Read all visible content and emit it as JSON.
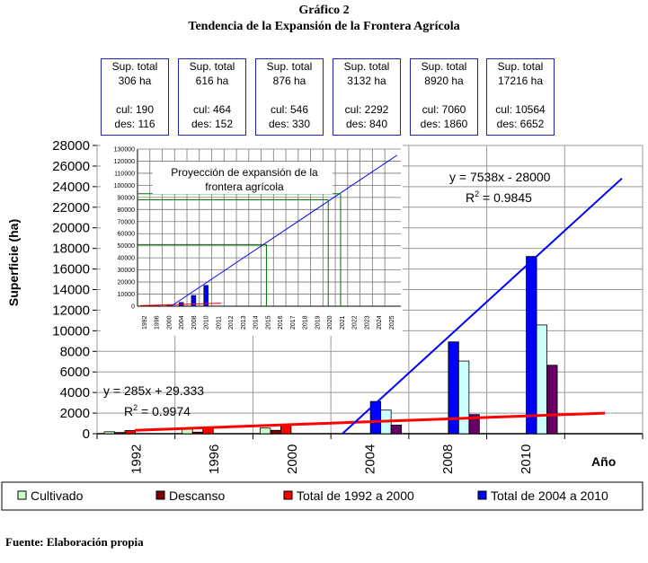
{
  "title": "Gráfico 2",
  "subtitle": "Tendencia de la Expansión de la Frontera Agrícola",
  "source": "Fuente: Elaboración propia",
  "boxes": [
    {
      "sup": "Sup. total",
      "total": "306 ha",
      "cul": "cul: 190",
      "des": "des: 116"
    },
    {
      "sup": "Sup. total",
      "total": "616 ha",
      "cul": "cul: 464",
      "des": "des: 152"
    },
    {
      "sup": "Sup. total",
      "total": "876 ha",
      "cul": "cul: 546",
      "des": "des: 330"
    },
    {
      "sup": "Sup. total",
      "total": "3132 ha",
      "cul": "cul: 2292",
      "des": "des: 840"
    },
    {
      "sup": "Sup. total",
      "total": "8920 ha",
      "cul": "cul: 7060",
      "des": "des: 1860"
    },
    {
      "sup": "Sup. total",
      "total": "17216 ha",
      "cul": "cul: 10564",
      "des": "des: 6652"
    }
  ],
  "chart_data": [
    {
      "type": "bar",
      "title": "",
      "ylabel": "Superficie (ha)",
      "xlabel": "Año",
      "ylim": [
        0,
        28000
      ],
      "yticks": [
        "0",
        "2000",
        "4000",
        "6000",
        "8000",
        "10000",
        "12000",
        "14000",
        "16000",
        "18000",
        "20000",
        "22000",
        "24000",
        "26000",
        "28000"
      ],
      "categories": [
        "1992",
        "1996",
        "2000",
        "2004",
        "2008",
        "2010"
      ],
      "series": [
        {
          "name": "Cultivado",
          "values": [
            190,
            464,
            546,
            2292,
            7060,
            10564
          ],
          "colors": [
            "#ccffcc",
            "#ccffff"
          ]
        },
        {
          "name": "Descanso",
          "values": [
            116,
            152,
            330,
            840,
            1860,
            6652
          ],
          "colors": [
            "#800000",
            "#660066"
          ]
        },
        {
          "name": "Total de 1992 a 2000",
          "values": [
            306,
            616,
            876,
            null,
            null,
            null
          ],
          "color": "#ff0000"
        },
        {
          "name": "Total de 2004 a 2010",
          "values": [
            null,
            null,
            null,
            3132,
            8920,
            17216
          ],
          "color": "#0000ff"
        }
      ],
      "trendlines": [
        {
          "equation": "y = 285x + 29.333",
          "r2_label": "R",
          "r2_value": "2",
          "r2_rest": " = 0.9974",
          "color": "#ff0000"
        },
        {
          "equation": "y = 7538x - 28000",
          "r2_label": "R",
          "r2_value": "2",
          "r2_rest": " = 0.9845",
          "color": "#0000ff"
        }
      ],
      "legend_position": "bottom"
    },
    {
      "type": "bar",
      "title": "Proyección de expansión de la frontera agrícola",
      "title_line1": "Proyección de expansión de la",
      "title_line2": "frontera agrícola",
      "ylim": [
        0,
        130000
      ],
      "yticks": [
        "0",
        "10000",
        "20000",
        "30000",
        "40000",
        "50000",
        "60000",
        "70000",
        "80000",
        "90000",
        "100000",
        "110000",
        "120000",
        "130000"
      ],
      "categories": [
        "1992",
        "1996",
        "2000",
        "2004",
        "2008",
        "2010",
        "2011",
        "2012",
        "2013",
        "2014",
        "2015",
        "2016",
        "2017",
        "2018",
        "2019",
        "2020",
        "2021",
        "2022",
        "2023",
        "2024",
        "2025"
      ],
      "totals": [
        306,
        616,
        876,
        3132,
        8920,
        17216
      ],
      "projection_markers": [
        {
          "x": "2015",
          "y": 51000
        },
        {
          "x": "2020",
          "y": 88000
        },
        {
          "x": "2021",
          "y": 93000
        }
      ]
    }
  ]
}
